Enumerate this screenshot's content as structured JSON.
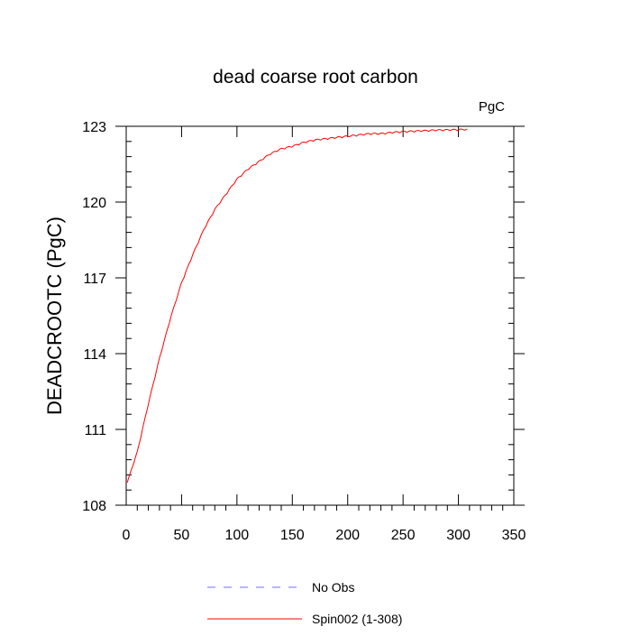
{
  "chart_data": {
    "type": "line",
    "title": "dead coarse root carbon",
    "units_label": "PgC",
    "xlabel": "",
    "ylabel": "DEADCROOTC  (PgC)",
    "xlim": [
      0,
      350
    ],
    "ylim": [
      108,
      123
    ],
    "x_ticks": [
      0,
      50,
      100,
      150,
      200,
      250,
      300,
      350
    ],
    "y_ticks": [
      108,
      111,
      114,
      117,
      120,
      123
    ],
    "grid": false,
    "legend_placement": "bottom",
    "legend": [
      {
        "label": "No Obs",
        "color": "#6f6fff",
        "style": "dashed"
      },
      {
        "label": "Spin002 (1-308)",
        "color": "#ff0000",
        "style": "solid"
      }
    ],
    "series": [
      {
        "name": "Spin002 (1-308)",
        "color": "#ff0000",
        "x": [
          1,
          10,
          20,
          30,
          40,
          50,
          60,
          70,
          80,
          90,
          100,
          110,
          120,
          130,
          140,
          150,
          160,
          170,
          180,
          190,
          200,
          210,
          220,
          230,
          240,
          250,
          260,
          270,
          280,
          290,
          300,
          308
        ],
        "y": [
          108.9,
          110.1,
          112.0,
          113.8,
          115.4,
          116.8,
          117.9,
          118.9,
          119.7,
          120.3,
          120.9,
          121.3,
          121.6,
          121.9,
          122.1,
          122.2,
          122.35,
          122.45,
          122.5,
          122.55,
          122.6,
          122.65,
          122.7,
          122.7,
          122.75,
          122.78,
          122.8,
          122.82,
          122.84,
          122.85,
          122.86,
          122.87
        ]
      }
    ]
  }
}
